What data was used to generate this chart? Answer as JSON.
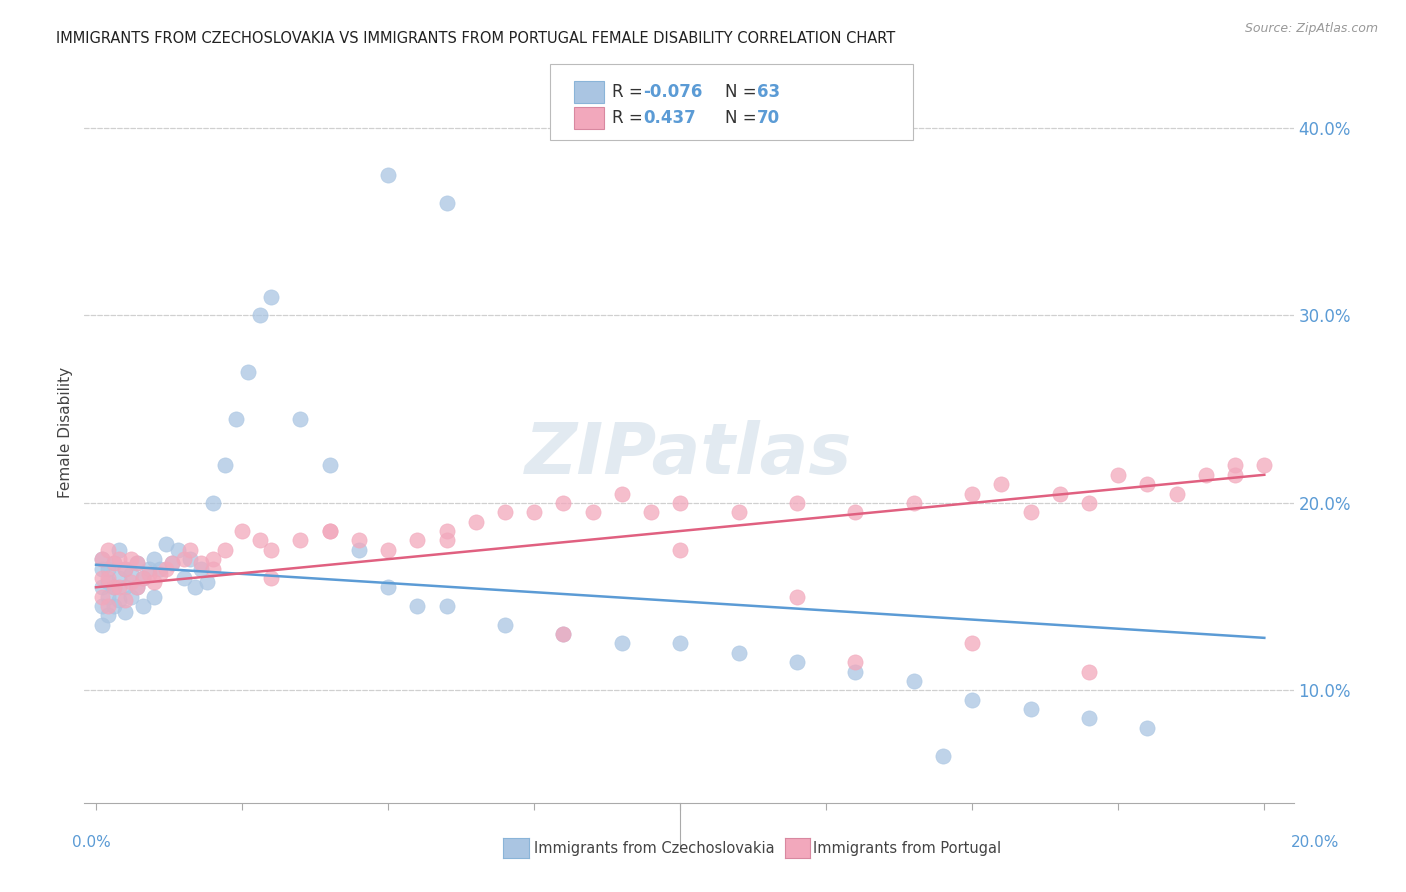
{
  "title": "IMMIGRANTS FROM CZECHOSLOVAKIA VS IMMIGRANTS FROM PORTUGAL FEMALE DISABILITY CORRELATION CHART",
  "source": "Source: ZipAtlas.com",
  "ylabel": "Female Disability",
  "xlim": [
    -0.002,
    0.205
  ],
  "ylim": [
    0.04,
    0.435
  ],
  "yticks": [
    0.1,
    0.2,
    0.3,
    0.4
  ],
  "ytick_labels": [
    "10.0%",
    "20.0%",
    "30.0%",
    "40.0%"
  ],
  "color_czech": "#aac5e2",
  "color_portugal": "#f2a8bc",
  "line_color_czech": "#5b9bd5",
  "line_color_portugal": "#e06080",
  "background_color": "#ffffff",
  "grid_color": "#d0d0d0",
  "watermark": "ZIPatlas",
  "legend_r1_label": "R = ",
  "legend_r1_val": "-0.076",
  "legend_n1_label": "N = ",
  "legend_n1_val": "63",
  "legend_r2_label": "R =  ",
  "legend_r2_val": "0.437",
  "legend_n2_label": "N = ",
  "legend_n2_val": "70",
  "czech_x": [
    0.001,
    0.001,
    0.001,
    0.001,
    0.001,
    0.002,
    0.002,
    0.002,
    0.002,
    0.003,
    0.003,
    0.003,
    0.004,
    0.004,
    0.004,
    0.005,
    0.005,
    0.005,
    0.006,
    0.006,
    0.007,
    0.007,
    0.008,
    0.008,
    0.009,
    0.01,
    0.01,
    0.011,
    0.012,
    0.013,
    0.014,
    0.015,
    0.016,
    0.017,
    0.018,
    0.019,
    0.02,
    0.022,
    0.024,
    0.026,
    0.028,
    0.03,
    0.035,
    0.04,
    0.045,
    0.05,
    0.055,
    0.06,
    0.07,
    0.08,
    0.09,
    0.1,
    0.11,
    0.12,
    0.13,
    0.14,
    0.15,
    0.16,
    0.17,
    0.18,
    0.05,
    0.06,
    0.145
  ],
  "czech_y": [
    0.135,
    0.145,
    0.155,
    0.165,
    0.17,
    0.14,
    0.15,
    0.158,
    0.165,
    0.145,
    0.155,
    0.168,
    0.148,
    0.16,
    0.175,
    0.142,
    0.155,
    0.165,
    0.15,
    0.162,
    0.155,
    0.168,
    0.145,
    0.16,
    0.165,
    0.15,
    0.17,
    0.165,
    0.178,
    0.168,
    0.175,
    0.16,
    0.17,
    0.155,
    0.165,
    0.158,
    0.2,
    0.22,
    0.245,
    0.27,
    0.3,
    0.31,
    0.245,
    0.22,
    0.175,
    0.155,
    0.145,
    0.145,
    0.135,
    0.13,
    0.125,
    0.125,
    0.12,
    0.115,
    0.11,
    0.105,
    0.095,
    0.09,
    0.085,
    0.08,
    0.375,
    0.36,
    0.065
  ],
  "portugal_x": [
    0.001,
    0.001,
    0.001,
    0.002,
    0.002,
    0.002,
    0.003,
    0.003,
    0.004,
    0.004,
    0.005,
    0.005,
    0.006,
    0.006,
    0.007,
    0.007,
    0.008,
    0.009,
    0.01,
    0.011,
    0.012,
    0.013,
    0.015,
    0.016,
    0.018,
    0.02,
    0.022,
    0.025,
    0.028,
    0.03,
    0.035,
    0.04,
    0.045,
    0.05,
    0.055,
    0.06,
    0.065,
    0.07,
    0.075,
    0.08,
    0.085,
    0.09,
    0.095,
    0.1,
    0.11,
    0.12,
    0.13,
    0.14,
    0.15,
    0.155,
    0.16,
    0.165,
    0.17,
    0.175,
    0.18,
    0.185,
    0.19,
    0.195,
    0.195,
    0.2,
    0.02,
    0.03,
    0.04,
    0.06,
    0.08,
    0.1,
    0.12,
    0.13,
    0.15,
    0.17
  ],
  "portugal_y": [
    0.15,
    0.16,
    0.17,
    0.145,
    0.16,
    0.175,
    0.155,
    0.168,
    0.155,
    0.17,
    0.148,
    0.165,
    0.158,
    0.17,
    0.155,
    0.168,
    0.16,
    0.162,
    0.158,
    0.162,
    0.165,
    0.168,
    0.17,
    0.175,
    0.168,
    0.17,
    0.175,
    0.185,
    0.18,
    0.175,
    0.18,
    0.185,
    0.18,
    0.175,
    0.18,
    0.185,
    0.19,
    0.195,
    0.195,
    0.2,
    0.195,
    0.205,
    0.195,
    0.2,
    0.195,
    0.2,
    0.195,
    0.2,
    0.205,
    0.21,
    0.195,
    0.205,
    0.2,
    0.215,
    0.21,
    0.205,
    0.215,
    0.22,
    0.215,
    0.22,
    0.165,
    0.16,
    0.185,
    0.18,
    0.13,
    0.175,
    0.15,
    0.115,
    0.125,
    0.11
  ]
}
